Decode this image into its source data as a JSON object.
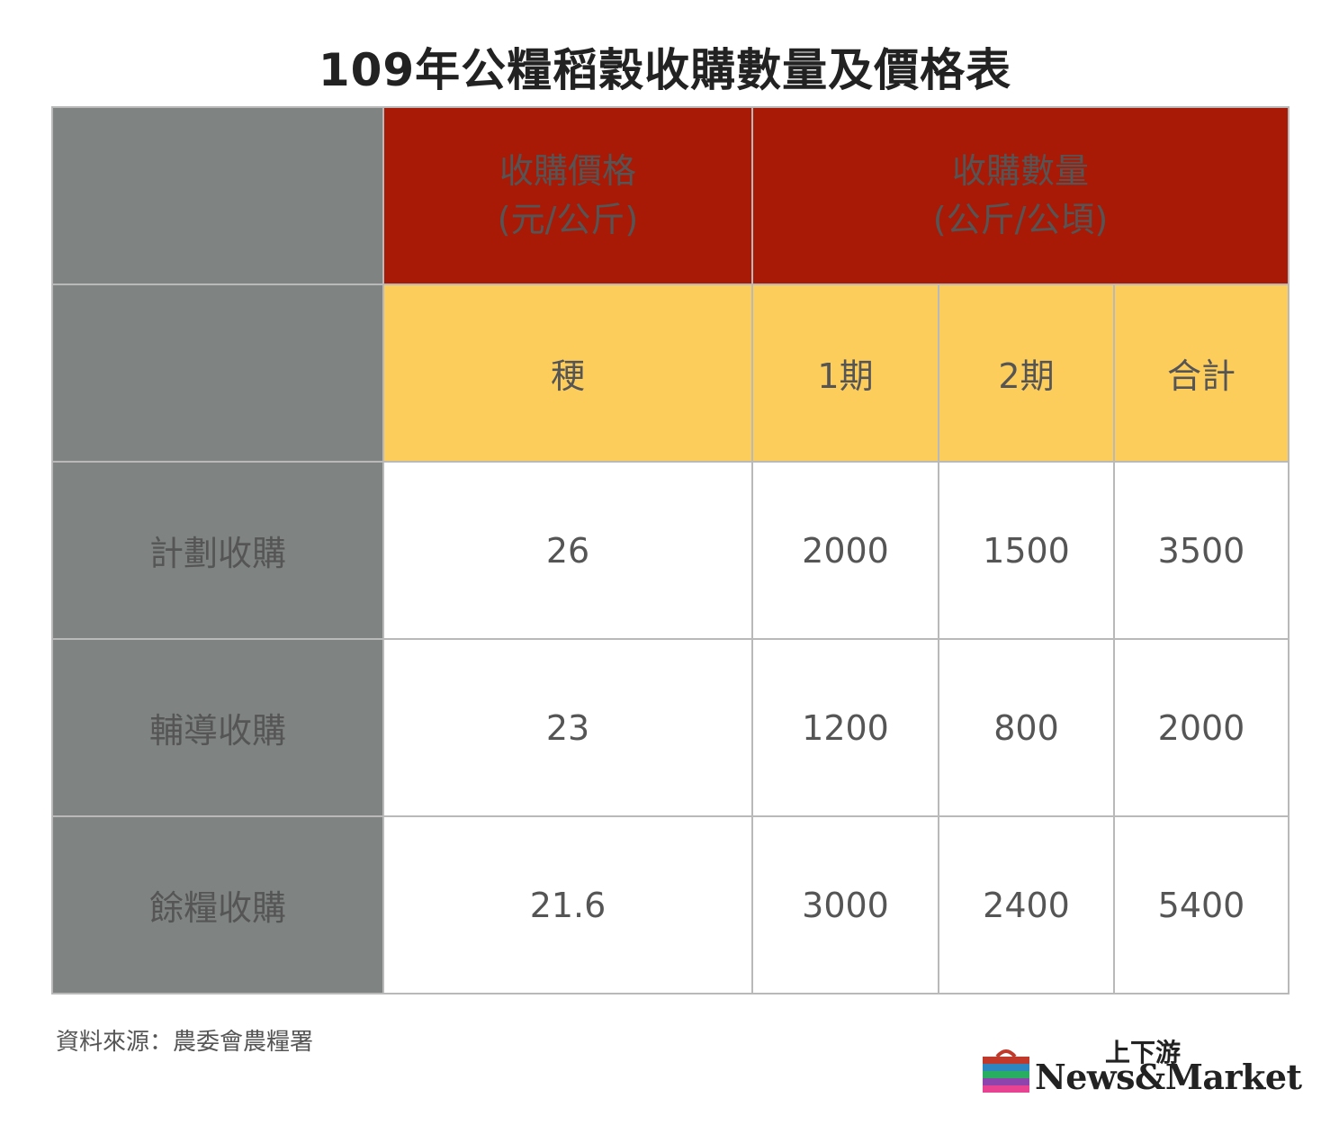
{
  "title": "109年公糧稻穀收購數量及價格表",
  "chart_data": {
    "type": "table",
    "title": "109年公糧稻穀收購數量及價格表",
    "header_groups": [
      {
        "line1": "收購價格",
        "line2": "(元/公斤)"
      },
      {
        "line1": "收購數量",
        "line2": "(公斤/公頃)"
      }
    ],
    "columns": [
      "稉",
      "1期",
      "2期",
      "合計"
    ],
    "rows": [
      {
        "label": "計劃收購",
        "values": [
          "26",
          "2000",
          "1500",
          "3500"
        ]
      },
      {
        "label": "輔導收購",
        "values": [
          "23",
          "1200",
          "800",
          "2000"
        ]
      },
      {
        "label": "餘糧收購",
        "values": [
          "21.6",
          "3000",
          "2400",
          "5400"
        ]
      }
    ]
  },
  "source": "資料來源：農委會農糧署",
  "logo": {
    "cn": "上下游",
    "en": "News&Market"
  },
  "colors": {
    "header_red": "#a91a06",
    "header_yellow": "#fdcd5c",
    "label_gray": "#7f8483"
  }
}
